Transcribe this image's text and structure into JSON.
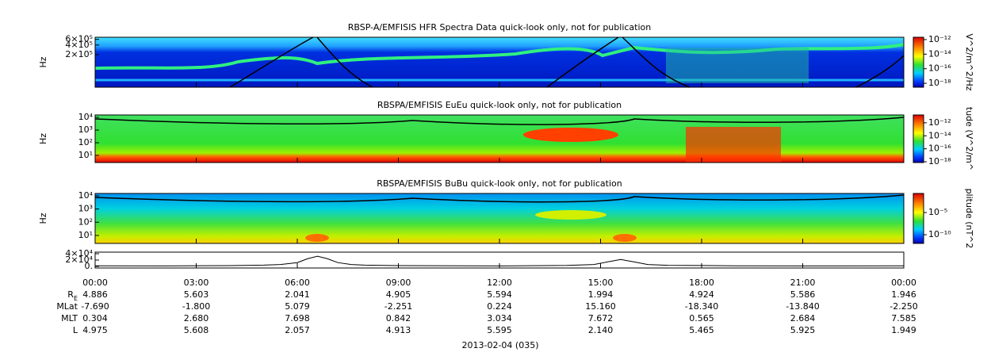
{
  "chart_data": [
    {
      "type": "spectrogram",
      "title": "RBSP-A/EMFISIS  HFR Spectra Data quick-look only, not for publication",
      "ylabel": "Hz",
      "log": true,
      "ylim": [
        19000,
        700000
      ],
      "yticks": [
        {
          "value": 600000,
          "label": "6×10⁵"
        },
        {
          "value": 400000,
          "label": "4×10⁵"
        },
        {
          "value": 200000,
          "label": "2×10⁵"
        }
      ],
      "colorbar": {
        "label": "V^2/m^2/Hz",
        "lim": [
          2.9e-19,
          2.1e-12
        ],
        "ticks": [
          {
            "value": 1e-12,
            "label": "10⁻¹²"
          },
          {
            "value": 1e-14,
            "label": "10⁻¹⁴"
          },
          {
            "value": 1e-16,
            "label": "10⁻¹⁶"
          },
          {
            "value": 1e-18,
            "label": "10⁻¹⁸"
          }
        ]
      }
    },
    {
      "type": "spectrogram",
      "title": "RBSPA/EMFISIS  EuEu quick-look only, not for publication",
      "ylabel": "Hz",
      "log": true,
      "ylim": [
        2.75,
        15500
      ],
      "yticks": [
        {
          "value": 10000,
          "label": "10⁴"
        },
        {
          "value": 1000,
          "label": "10³"
        },
        {
          "value": 100,
          "label": "10²"
        },
        {
          "value": 10,
          "label": "10¹"
        }
      ],
      "colorbar": {
        "label": "tude (V^2/m^",
        "lim": [
          7.6e-19,
          1.6e-11
        ],
        "ticks": [
          {
            "value": 1e-12,
            "label": "10⁻¹²"
          },
          {
            "value": 1e-14,
            "label": "10⁻¹⁴"
          },
          {
            "value": 1e-16,
            "label": "10⁻¹⁶"
          },
          {
            "value": 1e-18,
            "label": "10⁻¹⁸"
          }
        ]
      }
    },
    {
      "type": "spectrogram",
      "title": "RBSPA/EMFISIS  BuBu quick-look only, not for publication",
      "ylabel": "Hz",
      "log": true,
      "ylim": [
        2.5,
        15000
      ],
      "yticks": [
        {
          "value": 10000,
          "label": "10⁴"
        },
        {
          "value": 1000,
          "label": "10³"
        },
        {
          "value": 100,
          "label": "10²"
        },
        {
          "value": 10,
          "label": "10¹"
        }
      ],
      "colorbar": {
        "label": "plitude (nT^2",
        "lim": [
          1.1e-12,
          0.2
        ],
        "ticks": [
          {
            "value": 1e-05,
            "label": "10⁻⁵"
          },
          {
            "value": 1e-10,
            "label": "10⁻¹⁰"
          }
        ]
      }
    },
    {
      "type": "line",
      "ylim": [
        -5000,
        45000
      ],
      "yticks": [
        {
          "value": 40000,
          "label": "4×10⁴"
        },
        {
          "value": 20000,
          "label": "2×10⁴"
        },
        {
          "value": 0,
          "label": "0."
        }
      ],
      "x": [
        0,
        2,
        4,
        5,
        5.5,
        6,
        6.3,
        6.6,
        6.9,
        7.2,
        7.6,
        8,
        9,
        12,
        14,
        14.8,
        15.2,
        15.6,
        16,
        16.4,
        17,
        19,
        22,
        24
      ],
      "values": [
        2000,
        1500,
        2500,
        4000,
        6000,
        12000,
        24000,
        32000,
        24000,
        12000,
        6000,
        4000,
        2500,
        1500,
        3000,
        6000,
        14000,
        22000,
        14000,
        6000,
        3500,
        2000,
        1500,
        2000
      ],
      "color": "#000000"
    }
  ],
  "xlim": [
    0,
    24
  ],
  "xticks": [
    {
      "value": 0,
      "label": "00:00"
    },
    {
      "value": 3,
      "label": "03:00"
    },
    {
      "value": 6,
      "label": "06:00"
    },
    {
      "value": 9,
      "label": "09:00"
    },
    {
      "value": 12,
      "label": "12:00"
    },
    {
      "value": 15,
      "label": "15:00"
    },
    {
      "value": 18,
      "label": "18:00"
    },
    {
      "value": 21,
      "label": "21:00"
    },
    {
      "value": 24,
      "label": "00:00"
    }
  ],
  "ephemeris": [
    {
      "label": "R",
      "sub": "E",
      "values": [
        "4.886",
        "5.603",
        "2.041",
        "4.905",
        "5.594",
        "1.994",
        "4.924",
        "5.586",
        "1.946"
      ]
    },
    {
      "label": "MLat",
      "values": [
        "-7.690",
        "-1.800",
        "5.079",
        "-2.251",
        "0.224",
        "15.160",
        "-18.340",
        "-13.840",
        "-2.250"
      ]
    },
    {
      "label": "MLT",
      "values": [
        "0.304",
        "2.680",
        "7.698",
        "0.842",
        "3.034",
        "7.672",
        "0.565",
        "2.684",
        "7.585"
      ]
    },
    {
      "label": "L",
      "values": [
        "4.975",
        "5.608",
        "2.057",
        "4.913",
        "5.595",
        "2.140",
        "5.465",
        "5.925",
        "1.949"
      ]
    }
  ],
  "date": "2013-02-04 (035)"
}
